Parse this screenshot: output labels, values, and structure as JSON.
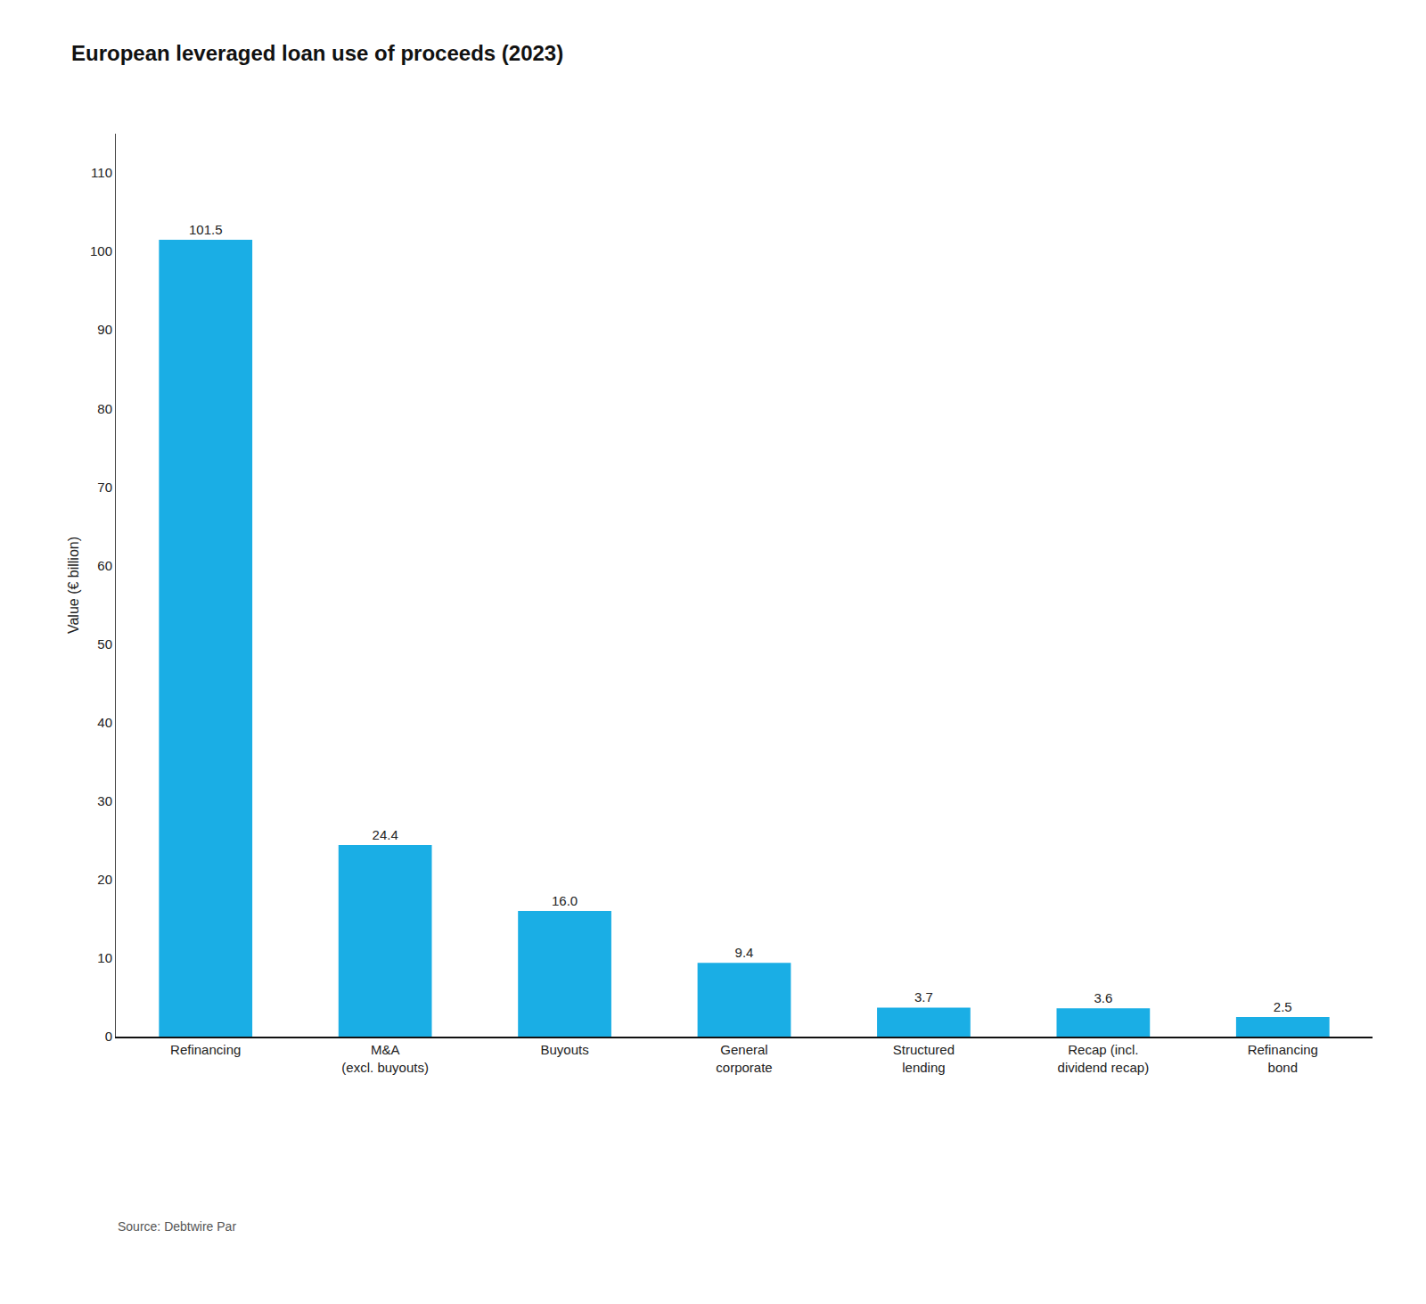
{
  "chart_data": {
    "type": "bar",
    "title": "European leveraged loan use of proceeds (2023)",
    "categories": [
      "Refinancing",
      "M&A\n(excl. buyouts)",
      "Buyouts",
      "General\ncorporate",
      "Structured\nlending",
      "Recap (incl.\ndividend recap)",
      "Refinancing\nbond"
    ],
    "values": [
      101.5,
      24.4,
      16.0,
      9.4,
      3.7,
      3.6,
      2.5
    ],
    "value_labels": [
      "101.5",
      "24.4",
      "16.0",
      "9.4",
      "3.7",
      "3.6",
      "2.5"
    ],
    "color": "#1aaee5",
    "ylabel": "Value (€ billion)",
    "ylim": [
      0,
      115
    ],
    "yticks": [
      0,
      10,
      20,
      30,
      40,
      50,
      60,
      70,
      80,
      90,
      100,
      110
    ],
    "data_labels": true,
    "grid": false,
    "annotations": [
      "Source: Debtwire Par"
    ]
  }
}
